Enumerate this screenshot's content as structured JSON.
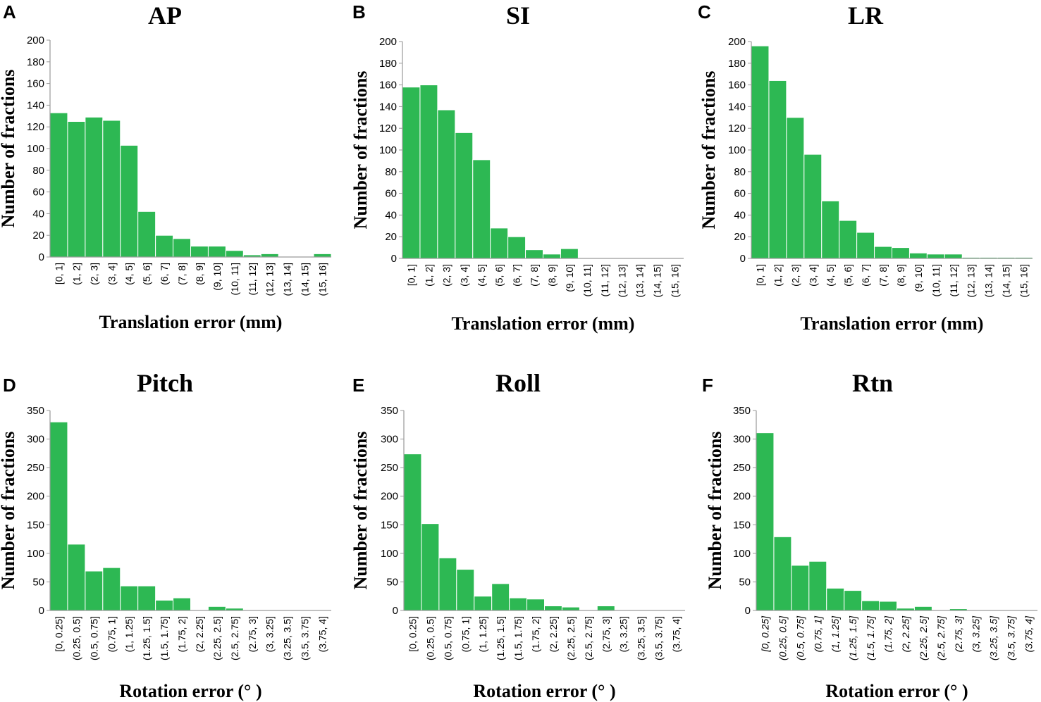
{
  "colors": {
    "bar": "#2db853",
    "axis": "#9a9a9a",
    "text": "#000000"
  },
  "chart_data": [
    {
      "panel": "A",
      "title": "AP",
      "type": "bar",
      "xlabel": "Translation error (mm)",
      "ylabel": "Number of fractions",
      "ylim": [
        0,
        200
      ],
      "yticks": [
        0,
        20,
        40,
        60,
        80,
        100,
        120,
        140,
        160,
        180,
        200
      ],
      "categories": [
        "[0, 1]",
        "(1, 2]",
        "(2, 3]",
        "(3, 4]",
        "(4, 5]",
        "(5, 6]",
        "(6, 7]",
        "(7, 8]",
        "(8, 9]",
        "(9, 10]",
        "(10, 11]",
        "(11, 12]",
        "(12, 13]",
        "(13, 14]",
        "(14, 15]",
        "(15, 16]"
      ],
      "values": [
        133,
        125,
        129,
        126,
        103,
        42,
        20,
        17,
        10,
        10,
        6,
        2,
        3,
        0,
        0,
        3
      ],
      "italic_categories": false
    },
    {
      "panel": "B",
      "title": "SI",
      "type": "bar",
      "xlabel": "Translation error (mm)",
      "ylabel": "Number of fractions",
      "ylim": [
        0,
        200
      ],
      "yticks": [
        0,
        20,
        40,
        60,
        80,
        100,
        120,
        140,
        160,
        180,
        200
      ],
      "categories": [
        "[0, 1]",
        "(1, 2]",
        "(2, 3]",
        "(3, 4]",
        "(4, 5]",
        "(5, 6]",
        "(6, 7]",
        "(7, 8]",
        "(8, 9]",
        "(9, 10]",
        "(10, 11]",
        "(11, 12]",
        "(12, 13]",
        "(13, 14]",
        "(14, 15]",
        "(15, 16]"
      ],
      "values": [
        158,
        160,
        137,
        116,
        91,
        28,
        20,
        8,
        4,
        9,
        0,
        0,
        0,
        0,
        0,
        0
      ],
      "italic_categories": false
    },
    {
      "panel": "C",
      "title": "LR",
      "type": "bar",
      "xlabel": "Translation error (mm)",
      "ylabel": "Number of fractions",
      "ylim": [
        0,
        200
      ],
      "yticks": [
        0,
        20,
        40,
        60,
        80,
        100,
        120,
        140,
        160,
        180,
        200
      ],
      "categories": [
        "[0, 1]",
        "(1, 2]",
        "(2, 3]",
        "(3, 4]",
        "(4, 5]",
        "(5, 6]",
        "(6, 7]",
        "(7, 8]",
        "(8, 9]",
        "(9, 10]",
        "(10, 11]",
        "(11, 12]",
        "(12, 13]",
        "(13, 14]",
        "(14, 15]",
        "(15, 16]"
      ],
      "values": [
        196,
        164,
        130,
        96,
        53,
        35,
        24,
        11,
        10,
        5,
        4,
        4,
        1,
        1,
        1,
        1
      ],
      "italic_categories": false
    },
    {
      "panel": "D",
      "title": "Pitch",
      "type": "bar",
      "xlabel": "Rotation error (° )",
      "ylabel": "Number of fractions",
      "ylim": [
        0,
        350
      ],
      "yticks": [
        0,
        50,
        100,
        150,
        200,
        250,
        300,
        350
      ],
      "categories": [
        "[0, 0.25]",
        "(0.25, 0.5]",
        "(0.5, 0.75]",
        "(0.75, 1]",
        "(1, 1.25]",
        "(1.25, 1.5]",
        "(1.5, 1.75]",
        "(1.75, 2]",
        "(2, 2.25]",
        "(2.25, 2.5]",
        "(2.5, 2.75]",
        "(2.75, 3]",
        "(3, 3.25]",
        "(3.25, 3.5]",
        "(3.5, 3.75]",
        "(3.75, 4]"
      ],
      "values": [
        330,
        116,
        69,
        75,
        43,
        43,
        18,
        22,
        0,
        7,
        4,
        1,
        1,
        0,
        1,
        1
      ],
      "italic_categories": false
    },
    {
      "panel": "E",
      "title": "Roll",
      "type": "bar",
      "xlabel": "Rotation error (° )",
      "ylabel": "Number of fractions",
      "ylim": [
        0,
        350
      ],
      "yticks": [
        0,
        50,
        100,
        150,
        200,
        250,
        300,
        350
      ],
      "categories": [
        "[0, 0.25]",
        "(0.25, 0.5]",
        "(0.5, 0.75]",
        "(0.75, 1]",
        "(1, 1.25]",
        "(1.25, 1.5]",
        "(1.5, 1.75]",
        "(1.75, 2]",
        "(2, 2.25]",
        "(2.25, 2.5]",
        "(2.5, 2.75]",
        "(2.75, 3]",
        "(3, 3.25]",
        "(3.25, 3.5]",
        "(3.5, 3.75]",
        "(3.75, 4]"
      ],
      "values": [
        274,
        152,
        92,
        72,
        25,
        47,
        22,
        20,
        8,
        6,
        0,
        8,
        0,
        0,
        0,
        0
      ],
      "italic_categories": false
    },
    {
      "panel": "F",
      "title": "Rtn",
      "type": "bar",
      "xlabel": "Rotation error (° )",
      "ylabel": "Number of fractions",
      "ylim": [
        0,
        350
      ],
      "yticks": [
        0,
        50,
        100,
        150,
        200,
        250,
        300,
        350
      ],
      "categories": [
        "[0, 0.25]",
        "(0.25, 0.5]",
        "(0.5, 0.75]",
        "(0.75, 1]",
        "(1, 1.25]",
        "(1.25, 1.5]",
        "(1.5, 1.75]",
        "(1.75, 2]",
        "(2, 2.25]",
        "(2.25, 2.5]",
        "(2.5, 2.75]",
        "(2.75, 3]",
        "(3, 3.25]",
        "(3.25, 3.5]",
        "(3.5, 3.75]",
        "(3.75, 4]"
      ],
      "values": [
        311,
        129,
        79,
        86,
        39,
        35,
        17,
        16,
        4,
        7,
        0,
        3,
        0,
        0,
        0,
        0
      ],
      "italic_categories": true
    }
  ]
}
